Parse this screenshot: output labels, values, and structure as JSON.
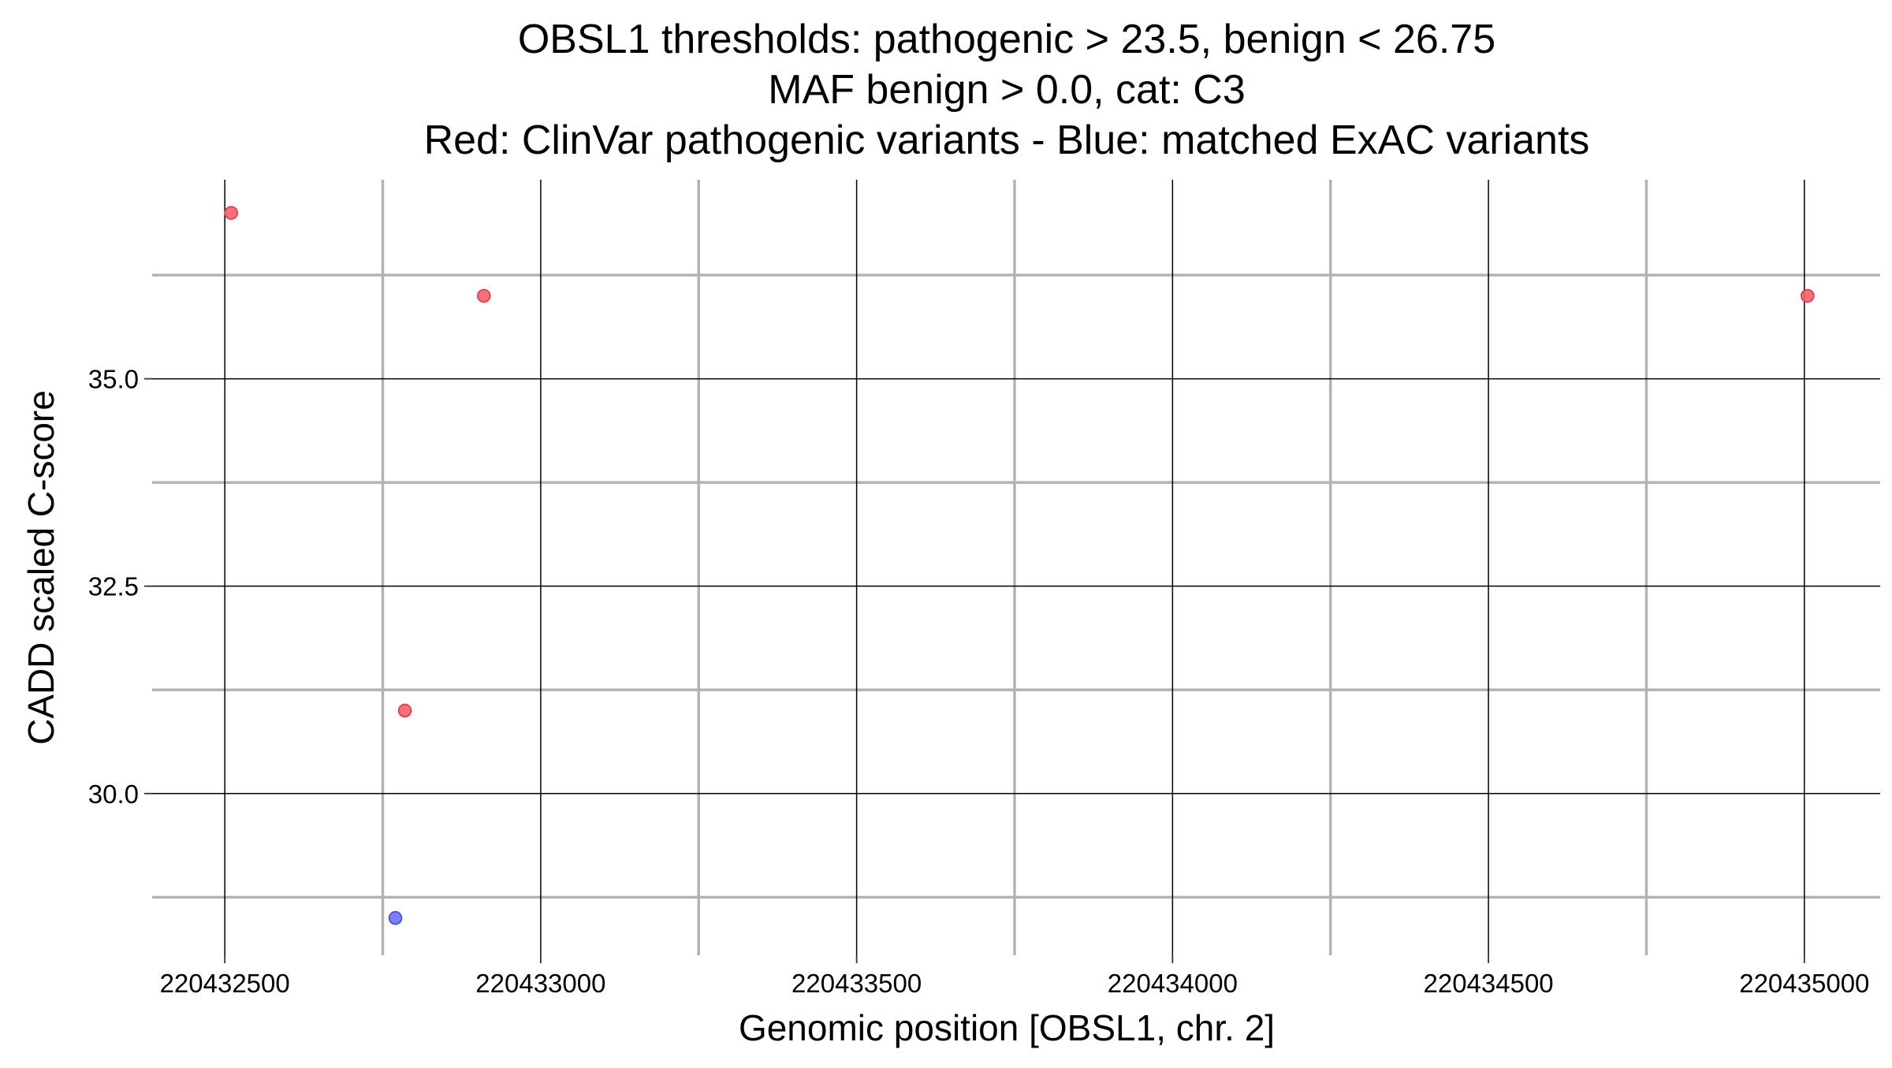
{
  "chart_data": {
    "type": "scatter",
    "title_lines": [
      "OBSL1 thresholds: pathogenic > 23.5, benign < 26.75",
      "MAF benign > 0.0, cat: C3",
      "Red: ClinVar pathogenic variants - Blue: matched ExAC variants"
    ],
    "xlabel": "Genomic position [OBSL1, chr. 2]",
    "ylabel": "CADD scaled C-score",
    "xlim": [
      220432385,
      220435120
    ],
    "ylim": [
      28.05,
      37.4
    ],
    "x_major_ticks": [
      220432500,
      220433000,
      220433500,
      220434000,
      220434500,
      220435000
    ],
    "x_tick_labels": [
      "220432500",
      "220433000",
      "220433500",
      "220434000",
      "220434500",
      "220435000"
    ],
    "x_minor_ticks": [
      220432750,
      220433250,
      220433750,
      220434250,
      220434750
    ],
    "y_major_ticks": [
      30.0,
      32.5,
      35.0
    ],
    "y_tick_labels": [
      "30.0",
      "32.5",
      "35.0"
    ],
    "y_minor_ticks": [
      28.75,
      31.25,
      33.75,
      36.25
    ],
    "grid": true,
    "legend": "none",
    "series": [
      {
        "color": "#f8606a",
        "points": [
          {
            "x": 220432510,
            "y": 37.0
          },
          {
            "x": 220432910,
            "y": 36.0
          },
          {
            "x": 220432785,
            "y": 31.0
          },
          {
            "x": 220435005,
            "y": 36.0
          }
        ]
      },
      {
        "color": "#6b72f8",
        "points": [
          {
            "x": 220432770,
            "y": 28.5
          }
        ]
      }
    ],
    "colors": {
      "major_grid": "#000000",
      "minor_grid": "#b3b3b3",
      "point_stroke_red": "#e0303a",
      "point_stroke_blue": "#3c44e0"
    }
  }
}
